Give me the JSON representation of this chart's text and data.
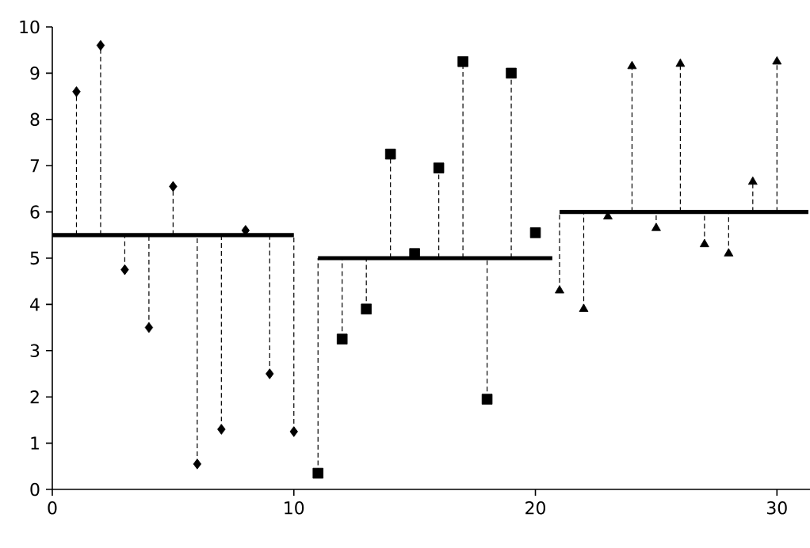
{
  "chart_data": {
    "type": "scatter",
    "xlim": [
      0,
      31.5
    ],
    "xticks": [
      0,
      10,
      20,
      30
    ],
    "ylim": [
      0,
      10
    ],
    "yticks": [
      0,
      1,
      2,
      3,
      4,
      5,
      6,
      7,
      8,
      9,
      10
    ],
    "grid": false,
    "line_style": "dashed",
    "series": [
      {
        "marker": "diamond",
        "color": "#000000",
        "x": [
          1,
          2,
          3,
          4,
          5,
          6,
          7,
          8,
          9,
          10
        ],
        "values": [
          8.6,
          9.6,
          4.75,
          3.5,
          6.55,
          0.55,
          1.3,
          5.6,
          2.5,
          1.25
        ],
        "errors": [
          [
            5.5,
            8.6
          ],
          [
            5.5,
            9.6
          ],
          [
            4.75,
            5.5
          ],
          [
            3.5,
            5.5
          ],
          [
            5.5,
            6.55
          ],
          [
            0.55,
            5.5
          ],
          [
            1.3,
            5.5
          ],
          [
            5.5,
            5.6
          ],
          [
            2.5,
            5.5
          ],
          [
            1.25,
            5.5
          ]
        ]
      },
      {
        "marker": "square",
        "color": "#000000",
        "x": [
          11,
          12,
          13,
          14,
          15,
          16,
          17,
          18,
          19,
          20
        ],
        "values": [
          0.35,
          3.25,
          3.9,
          7.25,
          5.1,
          6.95,
          9.25,
          1.95,
          9.0,
          5.55
        ],
        "errors": [
          [
            0.35,
            5.0
          ],
          [
            3.25,
            5.0
          ],
          [
            3.9,
            5.0
          ],
          [
            5.0,
            7.25
          ],
          [
            5.0,
            5.1
          ],
          [
            5.0,
            6.95
          ],
          [
            5.0,
            9.25
          ],
          [
            1.95,
            5.0
          ],
          [
            5.0,
            9.0
          ],
          null
        ]
      },
      {
        "marker": "triangle",
        "color": "#000000",
        "x": [
          21,
          22,
          23,
          24,
          25,
          26,
          27,
          28,
          29,
          30
        ],
        "values": [
          4.3,
          3.9,
          5.9,
          9.15,
          5.65,
          9.2,
          5.3,
          5.1,
          6.65,
          9.25
        ],
        "errors": [
          [
            4.3,
            6.0
          ],
          [
            3.9,
            6.0
          ],
          [
            5.9,
            6.0
          ],
          [
            6.0,
            9.15
          ],
          [
            5.65,
            6.0
          ],
          [
            6.0,
            9.2
          ],
          [
            5.3,
            6.0
          ],
          [
            5.1,
            6.0
          ],
          [
            6.0,
            6.65
          ],
          [
            6.0,
            9.25
          ]
        ]
      },
      {
        "type": "line",
        "marker": "none",
        "line_style": "solid",
        "color": "#000000",
        "x": [
          0,
          10
        ],
        "values": [
          5.5,
          5.5
        ]
      },
      {
        "type": "line",
        "marker": "none",
        "line_style": "solid",
        "color": "#000000",
        "x": [
          11,
          20.7
        ],
        "values": [
          5.0,
          5.0
        ]
      },
      {
        "type": "line",
        "marker": "none",
        "line_style": "solid",
        "color": "#000000",
        "x": [
          21,
          31.3
        ],
        "values": [
          6.0,
          6.0
        ]
      }
    ]
  }
}
